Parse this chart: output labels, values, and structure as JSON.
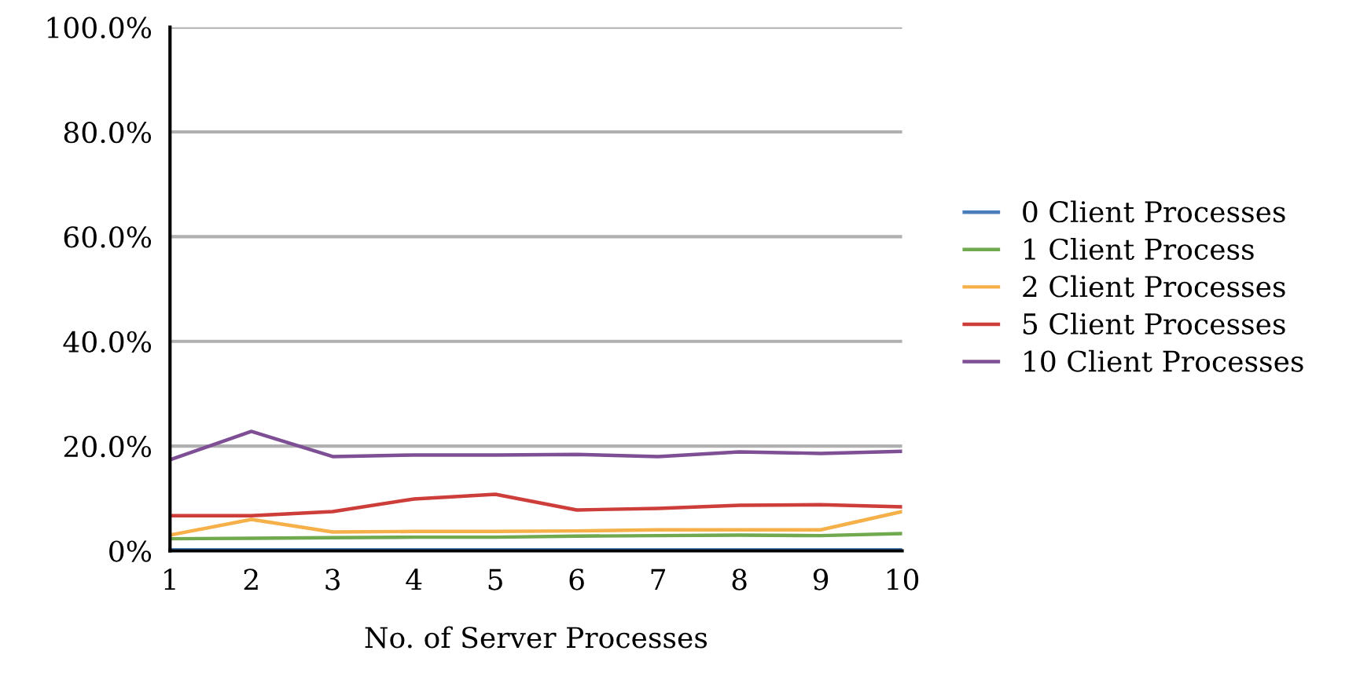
{
  "chart_data": {
    "type": "line",
    "xlabel": "No. of Server Processes",
    "x": [
      1,
      2,
      3,
      4,
      5,
      6,
      7,
      8,
      9,
      10
    ],
    "series": [
      {
        "name": "0 Client Processes",
        "color": "#4a7ebb",
        "values": [
          0.2,
          0.2,
          0.2,
          0.2,
          0.2,
          0.2,
          0.2,
          0.2,
          0.2,
          0.2
        ]
      },
      {
        "name": "1 Client Process",
        "color": "#71a94e",
        "values": [
          2.3,
          2.4,
          2.5,
          2.6,
          2.6,
          2.8,
          2.9,
          3.0,
          2.9,
          3.3
        ]
      },
      {
        "name": "2 Client Processes",
        "color": "#f5b04a",
        "values": [
          3.0,
          6.0,
          3.6,
          3.7,
          3.7,
          3.8,
          4.0,
          4.0,
          4.0,
          7.5
        ]
      },
      {
        "name": "5 Client Processes",
        "color": "#cd3d3a",
        "values": [
          6.7,
          6.7,
          7.5,
          9.9,
          10.8,
          7.8,
          8.1,
          8.7,
          8.8,
          8.4
        ]
      },
      {
        "name": "10 Client Processes",
        "color": "#7e4f94",
        "values": [
          17.4,
          22.8,
          18.0,
          18.3,
          18.3,
          18.4,
          18.0,
          18.9,
          18.6,
          19.0
        ]
      }
    ],
    "xlim": [
      1,
      10
    ],
    "xticks": [
      1,
      2,
      3,
      4,
      5,
      6,
      7,
      8,
      9,
      10
    ],
    "ylim": [
      0,
      100
    ],
    "yticks": [
      {
        "value": 0,
        "label": "0%"
      },
      {
        "value": 20,
        "label": "20.0%"
      },
      {
        "value": 40,
        "label": "40.0%"
      },
      {
        "value": 60,
        "label": "60.0%"
      },
      {
        "value": 80,
        "label": "80.0%"
      },
      {
        "value": 100,
        "label": "100.0%"
      }
    ],
    "grid": "y",
    "legend": "right",
    "marker": "none",
    "line_style": "solid"
  }
}
